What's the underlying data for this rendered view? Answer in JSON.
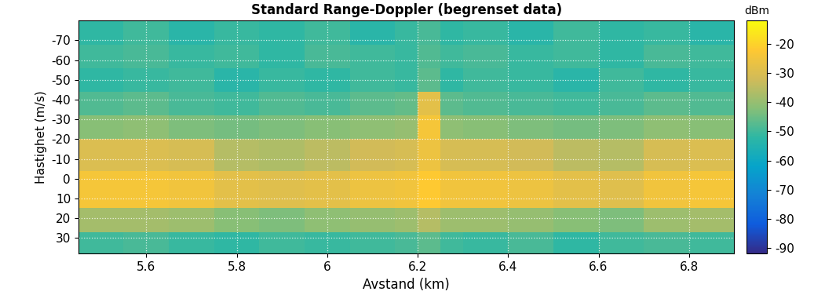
{
  "chart_data": {
    "type": "heatmap",
    "title": "Standard Range-Doppler (begrenset data)",
    "x_label": "Avstand (km)",
    "y_label": "Hastighet (m/s)",
    "x_edges": [
      5.45,
      5.55,
      5.65,
      5.75,
      5.85,
      5.95,
      6.05,
      6.15,
      6.2,
      6.25,
      6.3,
      6.4,
      6.5,
      6.6,
      6.7,
      6.8,
      6.9
    ],
    "y_edges": [
      -80,
      -68,
      -56,
      -44,
      -32,
      -20,
      -4,
      15,
      27,
      38
    ],
    "cells": [
      [
        -52,
        -50,
        -53,
        -51,
        -52,
        -50,
        -53,
        -51,
        -49,
        -52,
        -51,
        -53,
        -50,
        -52,
        -51,
        -53
      ],
      [
        -50,
        -49,
        -51,
        -50,
        -52,
        -49,
        -50,
        -51,
        -48,
        -50,
        -49,
        -51,
        -50,
        -52,
        -49,
        -50
      ],
      [
        -52,
        -51,
        -50,
        -53,
        -51,
        -52,
        -50,
        -51,
        -47,
        -52,
        -50,
        -51,
        -53,
        -50,
        -52,
        -51
      ],
      [
        -48,
        -47,
        -49,
        -50,
        -48,
        -49,
        -47,
        -46,
        -28,
        -47,
        -48,
        -49,
        -50,
        -49,
        -47,
        -48
      ],
      [
        -42,
        -41,
        -43,
        -44,
        -43,
        -42,
        -41,
        -40,
        -24,
        -41,
        -42,
        -43,
        -44,
        -43,
        -41,
        -42
      ],
      [
        -30,
        -30,
        -31,
        -36,
        -37,
        -35,
        -32,
        -31,
        -26,
        -31,
        -31,
        -32,
        -35,
        -36,
        -31,
        -30
      ],
      [
        -24,
        -24,
        -25,
        -28,
        -29,
        -28,
        -26,
        -25,
        -22,
        -25,
        -25,
        -26,
        -28,
        -29,
        -25,
        -24
      ],
      [
        -38,
        -38,
        -39,
        -42,
        -43,
        -41,
        -40,
        -39,
        -36,
        -39,
        -39,
        -40,
        -42,
        -43,
        -39,
        -38
      ],
      [
        -50,
        -49,
        -51,
        -52,
        -50,
        -51,
        -50,
        -49,
        -47,
        -50,
        -51,
        -49,
        -52,
        -50,
        -49,
        -50
      ]
    ],
    "colorbar": {
      "label": "dBm",
      "range": [
        -92,
        -12
      ],
      "ticks": [
        -90,
        -80,
        -70,
        -60,
        -50,
        -40,
        -30,
        -20
      ]
    },
    "xlim": [
      5.45,
      6.9
    ],
    "ylim": [
      38,
      -80
    ],
    "xticks": [
      5.6,
      5.8,
      6,
      6.2,
      6.4,
      6.6,
      6.8
    ],
    "yticks": [
      -70,
      -60,
      -50,
      -40,
      -30,
      -20,
      -10,
      0,
      10,
      20,
      30
    ],
    "grid": true
  }
}
